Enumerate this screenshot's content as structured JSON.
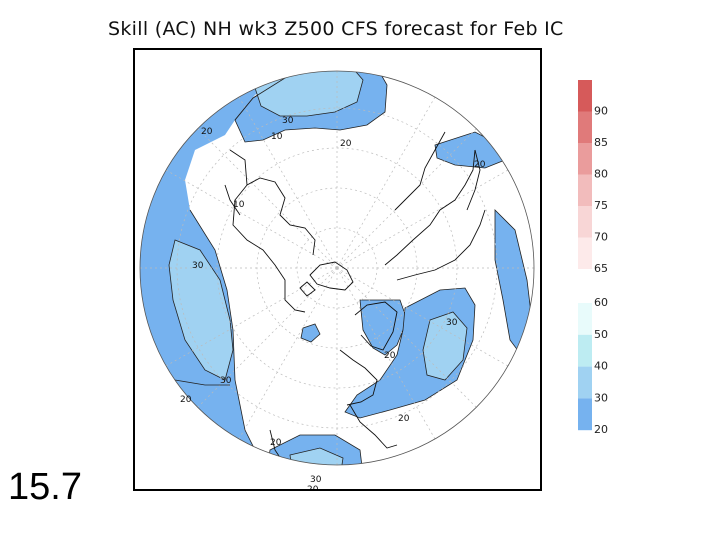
{
  "title": "Skill (AC) NH wk3 Z500 CFS forecast for Feb IC",
  "slide_number": "15.7",
  "colorbar": {
    "segments": [
      {
        "label": "90",
        "color": "#d65a5a"
      },
      {
        "label": "85",
        "color": "#e07a7a"
      },
      {
        "label": "80",
        "color": "#ea9c9c"
      },
      {
        "label": "75",
        "color": "#f2bcbc"
      },
      {
        "label": "70",
        "color": "#f8d6d6"
      },
      {
        "label": "65",
        "color": "#fdeaea"
      },
      {
        "label": "60",
        "color": "#e8fbfb"
      },
      {
        "label": "50",
        "color": "#bdecf2"
      },
      {
        "label": "40",
        "color": "#a0d2f2"
      },
      {
        "label": "30",
        "color": "#76b2ef"
      },
      {
        "label": "20",
        "color": ""
      }
    ]
  },
  "fill_colors": {
    "level_20": "#76b2ef",
    "level_30": "#a0d2f2"
  },
  "contour_labels": [
    "20",
    "10",
    "30",
    "20",
    "20",
    "10",
    "30",
    "30",
    "20",
    "30",
    "20",
    "20",
    "20",
    "30",
    "20"
  ]
}
